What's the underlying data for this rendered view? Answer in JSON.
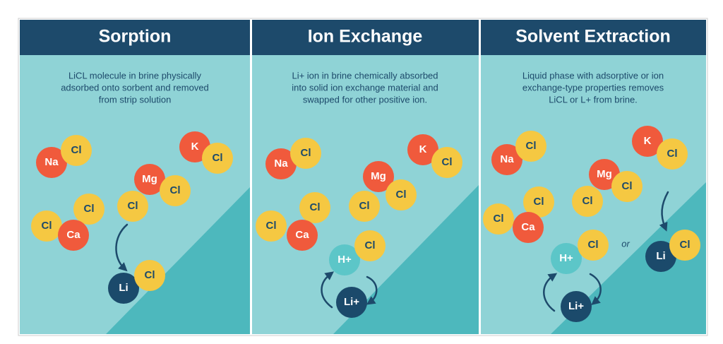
{
  "panels": [
    {
      "title": "Sorption",
      "description": [
        "LiCL molecule in brine physically",
        "adsorbed onto sorbent and removed",
        "from strip solution"
      ],
      "ions": [
        "Na",
        "Cl",
        "K",
        "Cl",
        "Mg",
        "Cl",
        "Cl",
        "Cl",
        "Cl",
        "Ca",
        "Li",
        "Cl"
      ]
    },
    {
      "title": "Ion Exchange",
      "description": [
        "Li+ ion in brine chemically absorbed",
        "into solid ion exchange material and",
        "swapped for other positive ion."
      ],
      "ions": [
        "Na",
        "Cl",
        "K",
        "Cl",
        "Mg",
        "Cl",
        "Cl",
        "Cl",
        "Cl",
        "Ca",
        "H+",
        "Cl",
        "Li+"
      ]
    },
    {
      "title": "Solvent Extraction",
      "description": [
        "Liquid phase with adsorptive or ion",
        "exchange-type properties removes",
        "LiCL or L+ from brine."
      ],
      "ions": [
        "Na",
        "Cl",
        "K",
        "Cl",
        "Mg",
        "Cl",
        "Cl",
        "Cl",
        "Cl",
        "Ca",
        "H+",
        "Cl",
        "Li+",
        "Li",
        "Cl"
      ],
      "connector": "or"
    }
  ]
}
